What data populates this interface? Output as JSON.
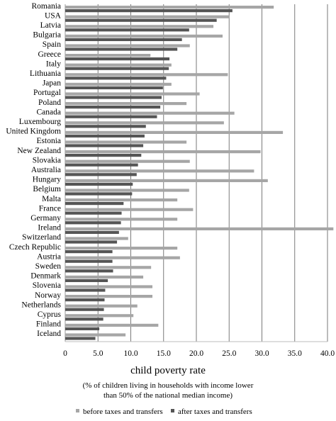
{
  "chart_data": {
    "type": "bar",
    "orientation": "horizontal",
    "categories": [
      "Romania",
      "USA",
      "Latvia",
      "Bulgaria",
      "Spain",
      "Greece",
      "Italy",
      "Lithuania",
      "Japan",
      "Portugal",
      "Poland",
      "Canada",
      "Luxembourg",
      "United Kingdom",
      "Estonia",
      "New Zealand",
      "Slovakia",
      "Australia",
      "Hungary",
      "Belgium",
      "Malta",
      "France",
      "Germany",
      "Ireland",
      "Switzerland",
      "Czech Republic",
      "Austria",
      "Sweden",
      "Denmark",
      "Slovenia",
      "Norway",
      "Netherlands",
      "Cyprus",
      "Finland",
      "Iceland"
    ],
    "series": [
      {
        "name": "before taxes and transfers",
        "color": "#a6a6a6",
        "values": [
          31.8,
          25.0,
          22.6,
          24.0,
          19.0,
          13.0,
          16.2,
          24.8,
          16.2,
          20.5,
          18.5,
          25.8,
          24.2,
          33.2,
          18.5,
          29.8,
          19.0,
          28.8,
          30.9,
          18.9,
          17.1,
          19.5,
          17.1,
          40.9,
          9.6,
          17.1,
          17.5,
          13.1,
          11.9,
          13.3,
          13.3,
          11.0,
          10.4,
          14.2,
          9.2
        ]
      },
      {
        "name": "after taxes and transfers",
        "color": "#555555",
        "values": [
          25.5,
          23.1,
          18.9,
          17.8,
          17.1,
          15.9,
          15.8,
          15.4,
          14.9,
          14.7,
          14.5,
          14.0,
          12.3,
          12.1,
          11.9,
          11.6,
          11.1,
          10.9,
          10.3,
          10.2,
          8.9,
          8.6,
          8.5,
          8.2,
          7.9,
          7.2,
          7.2,
          7.3,
          6.5,
          6.1,
          6.0,
          5.9,
          5.8,
          5.2,
          4.6
        ]
      }
    ],
    "xlim": [
      0,
      40
    ],
    "xticks": [
      "0",
      "5.0",
      "10.0",
      "15.0",
      "20.0",
      "25.0",
      "30.0",
      "35.0",
      "40.0"
    ],
    "grid": true,
    "xlabel": "child poverty rate",
    "subtitle_line1": "(% of children living in households with income lower",
    "subtitle_line2": "than 50% of the national median income)",
    "legend_position": "bottom"
  }
}
